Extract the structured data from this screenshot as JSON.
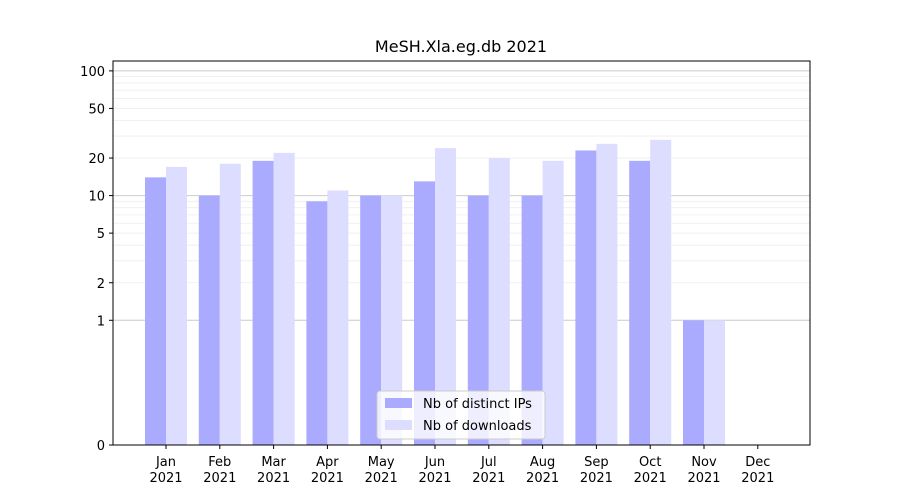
{
  "chart_data": {
    "type": "bar",
    "title": "MeSH.Xla.eg.db 2021",
    "xlabel": "",
    "ylabel": "",
    "scale": "symlog",
    "categories": [
      "Jan\n2021",
      "Feb\n2021",
      "Mar\n2021",
      "Apr\n2021",
      "May\n2021",
      "Jun\n2021",
      "Jul\n2021",
      "Aug\n2021",
      "Sep\n2021",
      "Oct\n2021",
      "Nov\n2021",
      "Dec\n2021"
    ],
    "y_ticks": [
      0,
      1,
      2,
      5,
      10,
      20,
      50,
      100
    ],
    "ylim": [
      0,
      120
    ],
    "series": [
      {
        "name": "Nb of distinct IPs",
        "color": "#aaaaff",
        "values": [
          14,
          10,
          19,
          9,
          10,
          13,
          10,
          10,
          23,
          19,
          1,
          0
        ]
      },
      {
        "name": "Nb of downloads",
        "color": "#ddddff",
        "values": [
          17,
          18,
          22,
          11,
          10,
          24,
          20,
          19,
          26,
          28,
          1,
          0
        ]
      }
    ],
    "legend_position": "lower-center",
    "grid": true
  }
}
